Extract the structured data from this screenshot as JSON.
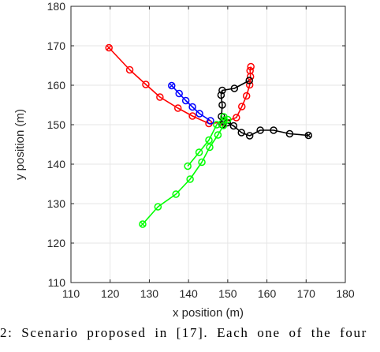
{
  "chart_data": {
    "type": "line",
    "xlabel": "x position (m)",
    "ylabel": "y position (m)",
    "xlim": [
      110,
      180
    ],
    "ylim": [
      110,
      180
    ],
    "xticks": [
      110,
      120,
      130,
      140,
      150,
      160,
      170,
      180
    ],
    "yticks": [
      110,
      120,
      130,
      140,
      150,
      160,
      170,
      180
    ],
    "grid": true,
    "series": [
      {
        "color": "#ff0000",
        "points": [
          [
            119.7,
            169.5
          ],
          [
            125.0,
            163.9
          ],
          [
            129.1,
            160.2
          ],
          [
            132.7,
            157.0
          ],
          [
            137.3,
            154.2
          ],
          [
            141.0,
            152.2
          ],
          [
            145.2,
            150.3
          ],
          [
            148.8,
            150.6
          ],
          [
            152.2,
            151.8
          ],
          [
            153.6,
            154.6
          ],
          [
            154.8,
            157.3
          ],
          [
            155.6,
            160.1
          ],
          [
            155.8,
            162.2
          ],
          [
            155.7,
            163.7
          ],
          [
            155.9,
            164.7
          ]
        ]
      },
      {
        "color": "#0000ff",
        "points": [
          [
            135.7,
            159.9
          ],
          [
            137.6,
            157.9
          ],
          [
            139.3,
            156.1
          ],
          [
            141.0,
            154.5
          ],
          [
            142.8,
            152.8
          ],
          [
            145.6,
            151.0
          ]
        ]
      },
      {
        "color": "#000000",
        "points": [
          [
            170.6,
            147.3
          ],
          [
            165.8,
            147.7
          ],
          [
            161.7,
            148.6
          ],
          [
            158.3,
            148.6
          ],
          [
            155.6,
            147.2
          ],
          [
            153.5,
            148.0
          ],
          [
            151.5,
            149.7
          ],
          [
            149.9,
            150.5
          ],
          [
            148.6,
            150.0
          ],
          [
            148.4,
            152.1
          ],
          [
            148.6,
            155.0
          ],
          [
            148.3,
            157.5
          ],
          [
            148.6,
            158.7
          ],
          [
            151.7,
            159.2
          ],
          [
            155.5,
            161.2
          ]
        ]
      },
      {
        "color": "#00ff00",
        "points": [
          [
            128.3,
            124.8
          ],
          [
            132.2,
            129.2
          ],
          [
            136.8,
            132.4
          ],
          [
            140.4,
            136.2
          ],
          [
            143.4,
            140.5
          ],
          [
            145.4,
            144.3
          ],
          [
            147.5,
            147.4
          ],
          [
            148.9,
            149.8
          ],
          [
            150.0,
            151.3
          ],
          [
            149.0,
            152.0
          ],
          [
            147.2,
            150.0
          ],
          [
            145.2,
            146.1
          ],
          [
            142.7,
            143.0
          ],
          [
            139.8,
            139.5
          ]
        ]
      }
    ]
  },
  "caption": "2: Scenario proposed in [17]. Each one of the four"
}
